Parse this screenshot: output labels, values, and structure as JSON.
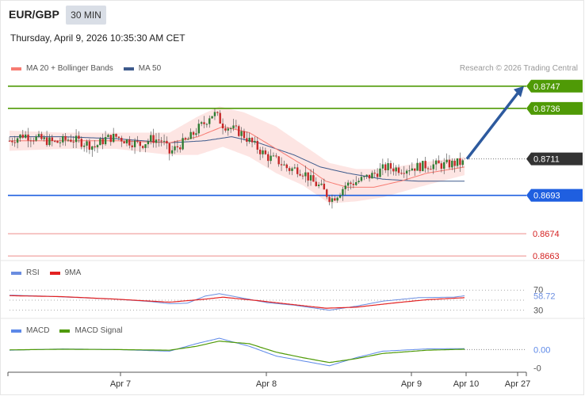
{
  "header": {
    "symbol": "EUR/GBP",
    "timeframe": "30 MIN",
    "datetime": "Thursday, April 9, 2026 10:35:30 AM CET",
    "credit": "Research © 2026 Trading Central"
  },
  "colors": {
    "ma20": "#f77b72",
    "ma50": "#3d5a8c",
    "bollinger_fill": "#fde2e0",
    "bull": "#2e7d32",
    "bear": "#c62828",
    "resistance": "#4f9a06",
    "pivot": "#1f5fe0",
    "support": "#f3b2b0",
    "support_text": "#d42020",
    "arrow": "#2d5a9e",
    "rsi": "#6a8de0",
    "rsi_ma": "#e32222",
    "macd": "#5c88e8",
    "macd_signal": "#4f9a06"
  },
  "chart_data": [
    {
      "type": "candlestick",
      "title": "EUR/GBP",
      "legend": [
        {
          "name": "MA 20 + Bollinger Bands",
          "color": "#f77b72"
        },
        {
          "name": "MA 50",
          "color": "#3d5a8c"
        }
      ],
      "legend_position": "top-left",
      "x_ticks": [
        "Apr 7",
        "Apr 8",
        "Apr 9",
        "Apr 10",
        "Apr 27"
      ],
      "ylim": [
        0.8658,
        0.8752
      ],
      "levels": [
        {
          "value": "0.8747",
          "kind": "resistance"
        },
        {
          "value": "0.8736",
          "kind": "resistance"
        },
        {
          "value": "0.8711",
          "kind": "current"
        },
        {
          "value": "0.8693",
          "kind": "pivot"
        },
        {
          "value": "0.8674",
          "kind": "support"
        },
        {
          "value": "0.8663",
          "kind": "support"
        }
      ],
      "close_path": [
        [
          0,
          0.872
        ],
        [
          8,
          0.8723
        ],
        [
          16,
          0.8721
        ],
        [
          26,
          0.8719
        ],
        [
          34,
          0.8721
        ],
        [
          42,
          0.8719
        ],
        [
          48,
          0.8717
        ],
        [
          54,
          0.8721
        ],
        [
          60,
          0.8722
        ],
        [
          66,
          0.872
        ],
        [
          74,
          0.8718
        ],
        [
          80,
          0.8721
        ],
        [
          86,
          0.872
        ],
        [
          90,
          0.8714
        ],
        [
          96,
          0.8718
        ],
        [
          101,
          0.8721
        ],
        [
          106,
          0.8726
        ],
        [
          110,
          0.8729
        ],
        [
          113,
          0.8733
        ],
        [
          116,
          0.8733
        ],
        [
          120,
          0.8728
        ],
        [
          125,
          0.8726
        ],
        [
          130,
          0.8724
        ],
        [
          135,
          0.872
        ],
        [
          140,
          0.8716
        ],
        [
          145,
          0.8712
        ],
        [
          151,
          0.871
        ],
        [
          157,
          0.8706
        ],
        [
          162,
          0.8706
        ],
        [
          166,
          0.8704
        ],
        [
          170,
          0.87
        ],
        [
          175,
          0.8697
        ],
        [
          178,
          0.8694
        ],
        [
          181,
          0.8691
        ],
        [
          185,
          0.8694
        ],
        [
          189,
          0.8698
        ],
        [
          196,
          0.87
        ],
        [
          204,
          0.8703
        ],
        [
          212,
          0.8707
        ],
        [
          220,
          0.8706
        ],
        [
          228,
          0.8707
        ],
        [
          236,
          0.8708
        ],
        [
          244,
          0.8708
        ],
        [
          252,
          0.8709
        ],
        [
          256,
          0.8709
        ]
      ],
      "ma20": [
        [
          0,
          0.872
        ],
        [
          30,
          0.872
        ],
        [
          60,
          0.872
        ],
        [
          90,
          0.8719
        ],
        [
          106,
          0.8722
        ],
        [
          120,
          0.8727
        ],
        [
          135,
          0.8724
        ],
        [
          150,
          0.8716
        ],
        [
          165,
          0.8708
        ],
        [
          178,
          0.87
        ],
        [
          190,
          0.8697
        ],
        [
          205,
          0.8697
        ],
        [
          220,
          0.87
        ],
        [
          235,
          0.8704
        ],
        [
          256,
          0.8707
        ]
      ],
      "ma50": [
        [
          0,
          0.8722
        ],
        [
          30,
          0.8722
        ],
        [
          60,
          0.8721
        ],
        [
          90,
          0.8719
        ],
        [
          110,
          0.872
        ],
        [
          125,
          0.8722
        ],
        [
          140,
          0.8719
        ],
        [
          160,
          0.8713
        ],
        [
          175,
          0.8707
        ],
        [
          190,
          0.8704
        ],
        [
          210,
          0.8701
        ],
        [
          230,
          0.87
        ],
        [
          245,
          0.87
        ],
        [
          256,
          0.87
        ]
      ],
      "bb_upper": [
        [
          0,
          0.8725
        ],
        [
          30,
          0.8724
        ],
        [
          60,
          0.8724
        ],
        [
          90,
          0.8724
        ],
        [
          106,
          0.8732
        ],
        [
          118,
          0.8737
        ],
        [
          132,
          0.8734
        ],
        [
          150,
          0.8727
        ],
        [
          165,
          0.8718
        ],
        [
          180,
          0.8709
        ],
        [
          195,
          0.8706
        ],
        [
          210,
          0.8706
        ],
        [
          230,
          0.8709
        ],
        [
          256,
          0.8712
        ]
      ],
      "bb_lower": [
        [
          0,
          0.8715
        ],
        [
          30,
          0.8716
        ],
        [
          60,
          0.8716
        ],
        [
          90,
          0.8713
        ],
        [
          106,
          0.8713
        ],
        [
          120,
          0.8717
        ],
        [
          135,
          0.8712
        ],
        [
          150,
          0.8704
        ],
        [
          165,
          0.8698
        ],
        [
          180,
          0.8689
        ],
        [
          195,
          0.869
        ],
        [
          210,
          0.8692
        ],
        [
          230,
          0.8697
        ],
        [
          256,
          0.8703
        ]
      ],
      "projection": {
        "from": "0.8711",
        "to": "0.8747"
      }
    },
    {
      "type": "line",
      "title": "RSI",
      "legend": [
        {
          "name": "RSI",
          "color": "#6a8de0"
        },
        {
          "name": "9MA",
          "color": "#e32222"
        }
      ],
      "ylim": [
        20,
        80
      ],
      "y_ticks": [
        "70",
        "30"
      ],
      "last_value": "58.72",
      "rsi": [
        [
          0,
          60
        ],
        [
          20,
          58
        ],
        [
          40,
          55
        ],
        [
          60,
          52
        ],
        [
          80,
          47
        ],
        [
          90,
          43
        ],
        [
          100,
          44
        ],
        [
          110,
          58
        ],
        [
          118,
          63
        ],
        [
          130,
          55
        ],
        [
          145,
          45
        ],
        [
          160,
          40
        ],
        [
          170,
          35
        ],
        [
          180,
          30
        ],
        [
          195,
          38
        ],
        [
          210,
          48
        ],
        [
          230,
          55
        ],
        [
          250,
          56
        ],
        [
          256,
          58.72
        ]
      ],
      "ma9": [
        [
          0,
          59
        ],
        [
          30,
          57
        ],
        [
          60,
          52
        ],
        [
          90,
          46
        ],
        [
          110,
          52
        ],
        [
          120,
          56
        ],
        [
          140,
          49
        ],
        [
          160,
          41
        ],
        [
          178,
          34
        ],
        [
          195,
          36
        ],
        [
          215,
          44
        ],
        [
          235,
          51
        ],
        [
          256,
          55
        ]
      ]
    },
    {
      "type": "line",
      "title": "MACD",
      "legend": [
        {
          "name": "MACD",
          "color": "#5c88e8"
        },
        {
          "name": "MACD Signal",
          "color": "#4f9a06"
        }
      ],
      "ylim": [
        -0.0007,
        0.0004
      ],
      "y_ticks": [
        "0.00",
        "-0"
      ],
      "macd": [
        [
          0,
          -2e-05
        ],
        [
          30,
          2e-05
        ],
        [
          60,
          0.0
        ],
        [
          90,
          -5e-05
        ],
        [
          105,
          0.00018
        ],
        [
          118,
          0.00035
        ],
        [
          135,
          0.0001
        ],
        [
          150,
          -0.0002
        ],
        [
          165,
          -0.00035
        ],
        [
          180,
          -0.0005
        ],
        [
          195,
          -0.00025
        ],
        [
          210,
          -5e-05
        ],
        [
          235,
          2e-05
        ],
        [
          256,
          3e-05
        ]
      ],
      "signal": [
        [
          0,
          -1e-05
        ],
        [
          30,
          1e-05
        ],
        [
          60,
          0.0
        ],
        [
          90,
          -2e-05
        ],
        [
          105,
          0.0001
        ],
        [
          118,
          0.00026
        ],
        [
          135,
          0.00018
        ],
        [
          150,
          -8e-05
        ],
        [
          165,
          -0.00025
        ],
        [
          180,
          -0.0004
        ],
        [
          195,
          -0.00028
        ],
        [
          210,
          -0.00012
        ],
        [
          235,
          -2e-05
        ],
        [
          256,
          1e-05
        ]
      ]
    }
  ]
}
